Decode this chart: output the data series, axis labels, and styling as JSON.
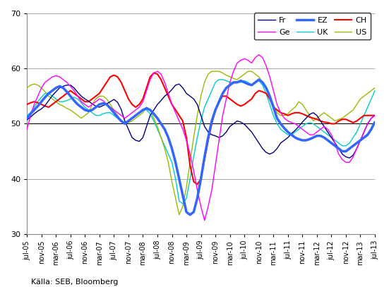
{
  "source_text": "Källa: SEB, Bloomberg",
  "ylim": [
    30,
    70
  ],
  "yticks": [
    30,
    40,
    50,
    60,
    70
  ],
  "series_colors": {
    "Fr": "#000080",
    "Ge": "#FF00FF",
    "EZ": "#3366FF",
    "UK": "#00CCCC",
    "CH": "#FF0000",
    "US": "#99BB00"
  },
  "series_widths": {
    "Fr": 1.0,
    "Ge": 1.0,
    "EZ": 2.5,
    "UK": 1.0,
    "CH": 1.5,
    "US": 1.0
  },
  "x_tick_labels": [
    "jul-05",
    "nov-05",
    "mar-06",
    "jul-06",
    "nov-06",
    "mar-07",
    "jul-07",
    "nov-07",
    "mar-08",
    "jul-08",
    "nov-08",
    "mar-09",
    "jul-09",
    "nov-09",
    "mar-10",
    "jul-10",
    "nov-10",
    "mar-11",
    "jul-11",
    "nov-11",
    "mar-12",
    "jul-12",
    "nov-12",
    "mar-13",
    "jul-13"
  ],
  "Fr": [
    50.7,
    51.2,
    51.8,
    52.3,
    52.7,
    53.3,
    54.2,
    55.1,
    55.8,
    56.5,
    56.8,
    57.0,
    57.0,
    56.5,
    55.7,
    55.0,
    54.5,
    54.1,
    53.6,
    53.2,
    53.0,
    53.3,
    53.6,
    54.0,
    54.4,
    53.9,
    52.6,
    50.5,
    49.0,
    47.5,
    47.0,
    46.8,
    47.5,
    49.5,
    51.5,
    52.5,
    53.5,
    54.2,
    55.0,
    55.5,
    56.2,
    57.0,
    57.2,
    56.5,
    55.5,
    55.0,
    54.5,
    53.5,
    51.5,
    49.5,
    48.5,
    48.0,
    47.8,
    47.5,
    47.8,
    48.5,
    49.5,
    50.0,
    50.5,
    50.3,
    49.9,
    49.2,
    48.5,
    47.5,
    46.5,
    45.5,
    44.8,
    44.5,
    44.8,
    45.5,
    46.5,
    47.0,
    47.5,
    48.2,
    48.8,
    49.5,
    50.3,
    51.0,
    51.7,
    52.0,
    51.5,
    50.5,
    49.5,
    48.5,
    47.5,
    46.5,
    45.5,
    44.5,
    44.0,
    43.8,
    44.3,
    45.5,
    47.0,
    48.5,
    50.0,
    51.0,
    51.5
  ],
  "Ge": [
    49.0,
    51.5,
    53.5,
    55.0,
    56.5,
    57.5,
    58.0,
    58.5,
    58.7,
    58.5,
    58.0,
    57.5,
    56.8,
    56.0,
    55.0,
    54.0,
    53.5,
    53.0,
    53.5,
    54.0,
    54.5,
    54.2,
    53.5,
    53.0,
    52.5,
    52.0,
    51.5,
    51.0,
    51.5,
    52.0,
    52.5,
    53.0,
    54.0,
    56.0,
    58.0,
    59.2,
    59.5,
    59.0,
    57.5,
    55.5,
    53.5,
    52.0,
    50.5,
    49.0,
    47.0,
    44.5,
    41.5,
    38.0,
    35.0,
    32.5,
    35.0,
    38.0,
    42.5,
    47.0,
    51.5,
    54.5,
    57.5,
    59.5,
    61.0,
    61.5,
    61.8,
    61.5,
    61.0,
    62.0,
    62.5,
    62.0,
    60.5,
    58.5,
    56.0,
    53.5,
    52.0,
    51.0,
    50.5,
    50.2,
    50.0,
    49.5,
    49.0,
    48.5,
    48.0,
    48.0,
    48.5,
    49.0,
    49.5,
    49.0,
    48.0,
    46.5,
    44.5,
    43.5,
    43.0,
    43.0,
    44.0,
    45.5,
    47.0,
    48.5,
    50.0,
    51.0,
    51.5
  ],
  "EZ": [
    51.0,
    51.8,
    52.5,
    53.2,
    54.0,
    54.8,
    55.5,
    56.0,
    56.5,
    56.8,
    56.5,
    55.8,
    55.0,
    54.2,
    53.5,
    53.0,
    52.5,
    52.3,
    52.5,
    53.0,
    53.5,
    53.7,
    53.5,
    52.8,
    52.0,
    51.2,
    50.5,
    50.0,
    50.5,
    51.0,
    51.5,
    52.0,
    52.5,
    52.8,
    52.5,
    51.8,
    51.0,
    50.0,
    49.0,
    47.5,
    45.5,
    43.0,
    40.0,
    37.0,
    34.0,
    33.5,
    34.0,
    36.5,
    40.0,
    44.0,
    47.5,
    50.5,
    52.5,
    54.0,
    55.5,
    56.5,
    57.0,
    57.5,
    57.5,
    57.8,
    57.5,
    57.2,
    57.0,
    57.5,
    58.0,
    57.5,
    56.5,
    55.0,
    53.0,
    51.0,
    50.0,
    49.2,
    48.5,
    48.0,
    47.5,
    47.2,
    47.0,
    47.0,
    47.2,
    47.5,
    47.8,
    47.8,
    47.5,
    47.0,
    46.5,
    46.0,
    45.5,
    45.0,
    45.0,
    45.5,
    46.0,
    46.5,
    47.0,
    47.5,
    48.0,
    49.0,
    50.3
  ],
  "UK": [
    51.5,
    52.0,
    53.0,
    54.0,
    54.8,
    55.5,
    55.5,
    55.0,
    54.5,
    54.0,
    54.0,
    54.2,
    54.5,
    54.8,
    54.5,
    53.8,
    53.0,
    52.5,
    52.0,
    51.5,
    51.5,
    51.8,
    52.0,
    52.0,
    51.5,
    51.0,
    50.5,
    50.2,
    50.5,
    51.0,
    51.5,
    52.0,
    52.5,
    52.5,
    51.8,
    50.5,
    49.0,
    47.5,
    46.0,
    44.5,
    43.0,
    40.0,
    36.0,
    35.5,
    36.5,
    40.0,
    44.0,
    47.5,
    50.5,
    53.0,
    54.5,
    56.0,
    57.5,
    58.0,
    58.0,
    57.8,
    57.5,
    57.5,
    57.5,
    57.5,
    57.8,
    57.5,
    57.0,
    57.5,
    57.8,
    57.0,
    55.5,
    53.5,
    51.5,
    50.0,
    49.0,
    48.5,
    48.0,
    48.0,
    48.5,
    49.0,
    49.5,
    50.0,
    50.2,
    50.0,
    49.5,
    49.0,
    48.5,
    48.0,
    47.5,
    47.0,
    46.5,
    46.0,
    46.0,
    46.5,
    47.5,
    48.5,
    50.0,
    51.5,
    53.0,
    54.5,
    56.0
  ],
  "CH": [
    53.5,
    53.8,
    54.0,
    53.8,
    53.5,
    53.2,
    53.0,
    53.5,
    54.0,
    54.5,
    55.0,
    55.5,
    56.0,
    55.5,
    55.0,
    54.5,
    54.0,
    54.0,
    54.5,
    55.0,
    55.5,
    56.5,
    57.5,
    58.5,
    58.8,
    58.5,
    57.5,
    56.0,
    54.5,
    53.5,
    53.0,
    53.5,
    54.5,
    56.5,
    58.5,
    59.2,
    59.0,
    58.0,
    56.5,
    55.0,
    53.5,
    52.5,
    51.5,
    50.5,
    47.5,
    42.5,
    39.5,
    39.0,
    40.0,
    43.5,
    47.0,
    50.0,
    52.5,
    54.0,
    55.0,
    55.0,
    54.5,
    54.0,
    53.5,
    53.2,
    53.5,
    54.0,
    54.5,
    55.5,
    56.0,
    55.8,
    55.5,
    54.5,
    53.0,
    52.5,
    52.0,
    51.8,
    51.5,
    51.8,
    52.0,
    52.0,
    51.8,
    51.5,
    51.2,
    51.0,
    50.8,
    50.5,
    50.3,
    50.2,
    50.0,
    50.0,
    50.5,
    50.8,
    50.8,
    50.5,
    50.2,
    50.5,
    51.0,
    51.5,
    51.5,
    51.5,
    51.5
  ],
  "US": [
    56.5,
    57.0,
    57.2,
    57.0,
    56.5,
    55.8,
    55.0,
    54.5,
    54.0,
    53.5,
    53.2,
    52.8,
    52.5,
    52.0,
    51.5,
    51.0,
    51.5,
    52.0,
    53.5,
    54.5,
    55.0,
    55.0,
    54.5,
    53.5,
    52.5,
    51.5,
    50.5,
    50.0,
    50.2,
    50.5,
    51.0,
    51.5,
    52.0,
    53.0,
    52.5,
    51.0,
    49.5,
    47.5,
    45.5,
    43.0,
    39.5,
    36.5,
    33.5,
    35.0,
    38.5,
    43.0,
    47.5,
    51.5,
    55.0,
    57.5,
    59.0,
    59.5,
    59.5,
    59.5,
    59.2,
    58.8,
    58.5,
    58.2,
    58.0,
    58.5,
    59.0,
    59.5,
    59.5,
    59.0,
    58.5,
    57.5,
    56.5,
    55.0,
    53.5,
    52.0,
    51.5,
    51.5,
    51.8,
    52.5,
    53.0,
    54.0,
    53.5,
    52.5,
    51.5,
    50.5,
    51.0,
    51.5,
    52.0,
    51.5,
    51.0,
    50.5,
    50.8,
    51.0,
    51.5,
    52.0,
    52.5,
    53.5,
    54.5,
    55.0,
    55.5,
    56.0,
    56.5
  ]
}
